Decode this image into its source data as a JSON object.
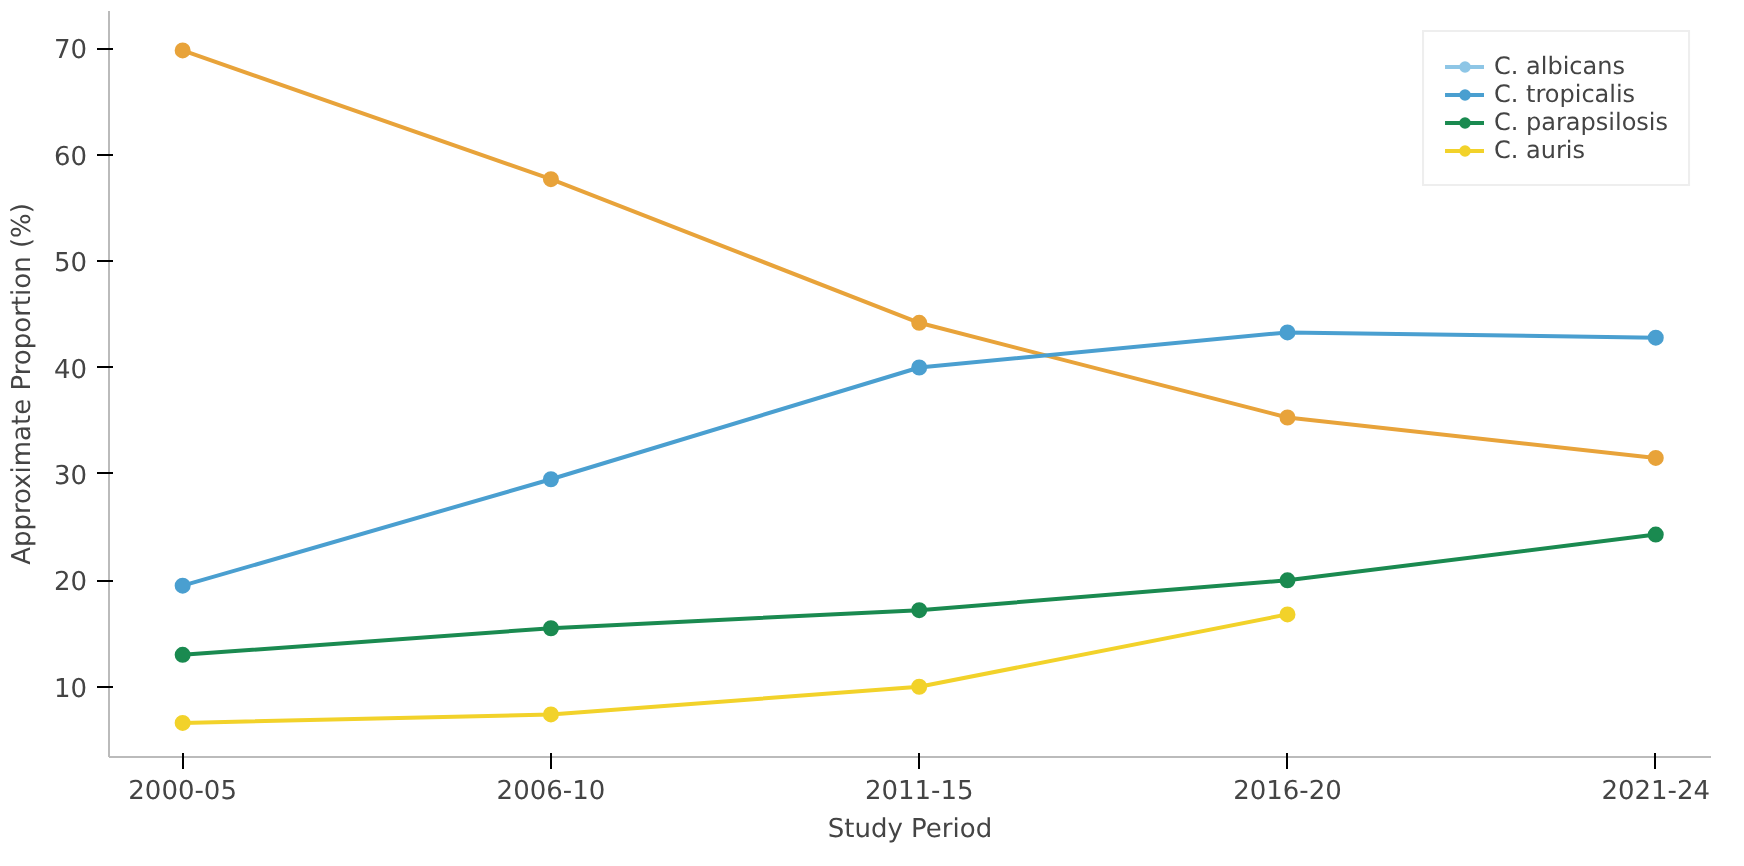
{
  "chart_data": {
    "type": "line",
    "xlabel": "Study Period",
    "ylabel": "Approximate Proportion (%)",
    "categories": [
      "2000-05",
      "2006-10",
      "2011-15",
      "2016-20",
      "2021-24"
    ],
    "series": [
      {
        "color": "#e8a33a",
        "values": [
          69.8,
          57.7,
          44.2,
          35.3,
          31.5
        ]
      },
      {
        "name": "C. albicans",
        "color": "#8ec6e6",
        "values": [
          null,
          null,
          null,
          null,
          null
        ]
      },
      {
        "name": "C. tropicalis",
        "color": "#4a9fd0",
        "values": [
          19.5,
          29.5,
          40,
          43.3,
          42.8
        ]
      },
      {
        "name": "C. parapsilosis",
        "color": "#1a8a50",
        "values": [
          13,
          15.5,
          17.2,
          20,
          24.3
        ]
      },
      {
        "name": "C. auris",
        "color": "#f2d22a",
        "values": [
          6.6,
          7.4,
          10,
          16.8,
          null
        ]
      }
    ],
    "ylim": [
      3.4,
      73.5
    ],
    "yticks": [
      10,
      20,
      30,
      40,
      50,
      60,
      70
    ],
    "grid": false,
    "legend": "top right",
    "marker": "circle",
    "line_style": "solid"
  }
}
